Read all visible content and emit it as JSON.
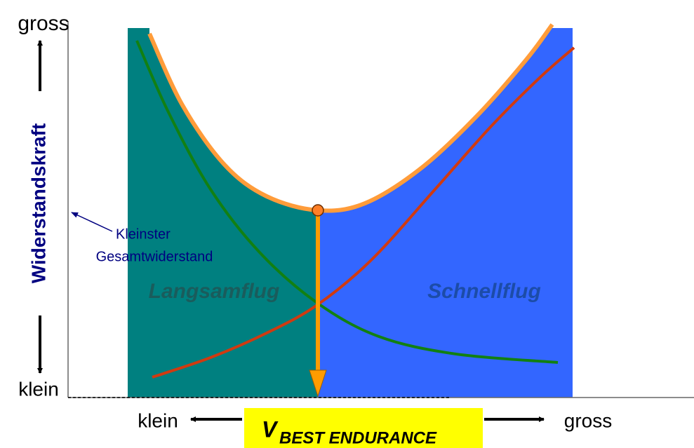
{
  "y_axis": {
    "label": "Widerstandskraft",
    "top": "gross",
    "bottom": "klein"
  },
  "x_axis": {
    "left": "klein",
    "right": "gross",
    "label": {
      "symbol": "V",
      "subscript": "BEST ENDURANCE"
    }
  },
  "annotation": [
    "Kleinster",
    "Gesamtwiderstand"
  ],
  "regions": [
    "Langsamflug",
    "Schnellflug"
  ]
}
